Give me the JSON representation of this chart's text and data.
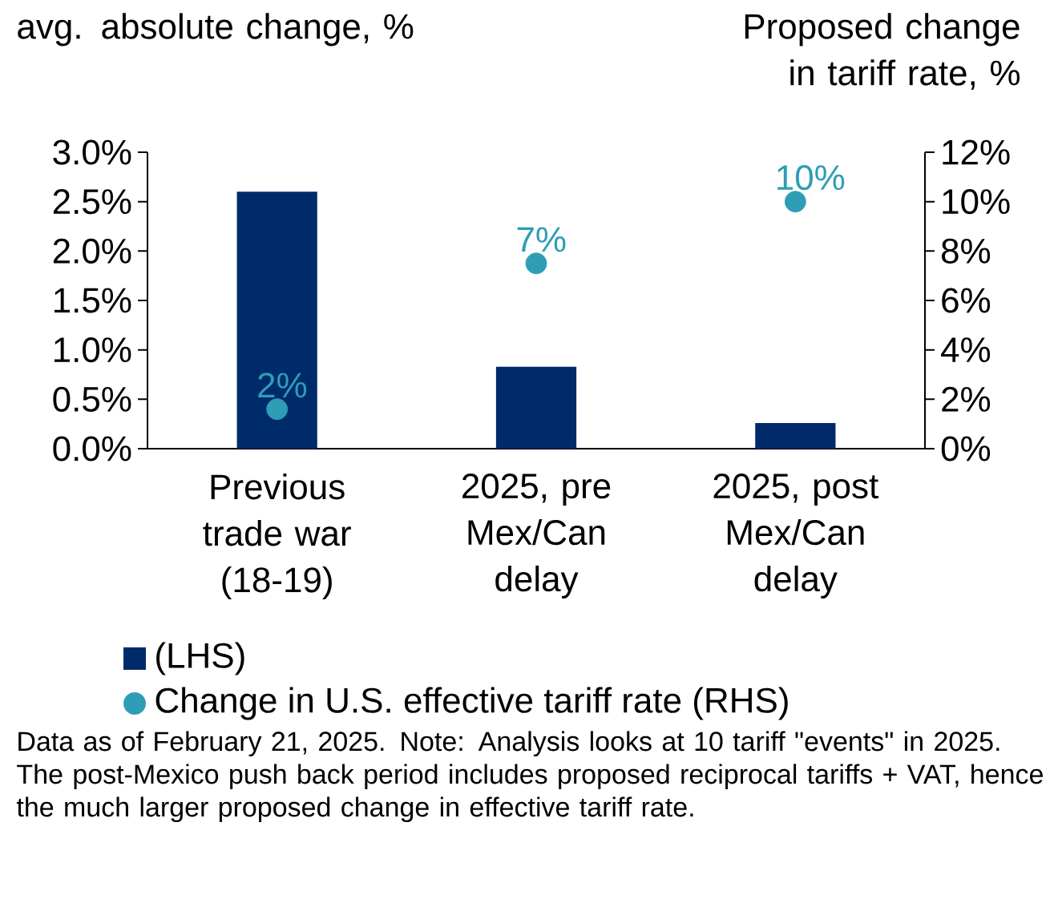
{
  "chart_data": {
    "type": "bar",
    "ylabel": "avg. absolute change, %",
    "y2label": "Proposed change in tariff rate, %",
    "categories": [
      "Previous trade war (18-19)",
      "2025, pre Mex/Can delay",
      "2025, post Mex/Can delay"
    ],
    "series": [
      {
        "name": "(LHS)",
        "color": "#002b6b",
        "values": [
          2.6,
          0.83,
          0.26
        ]
      },
      {
        "name": "Change in U.S. effective tariff rate (RHS)",
        "type": "scatter",
        "axis": "y2",
        "marker": "circle",
        "color": "#2e9db5",
        "values": [
          1.6,
          7.5,
          10
        ],
        "value_labels": [
          "2%",
          "7%",
          "10%"
        ]
      }
    ],
    "ylim": [
      0,
      3
    ],
    "yticks": [
      {
        "value": 0,
        "label": "0.0%"
      },
      {
        "value": 0.5,
        "label": "0.5%"
      },
      {
        "value": 1,
        "label": "1.0%"
      },
      {
        "value": 1.5,
        "label": "1.5%"
      },
      {
        "value": 2,
        "label": "2.0%"
      },
      {
        "value": 2.5,
        "label": "2.5%"
      },
      {
        "value": 3,
        "label": "3.0%"
      }
    ],
    "y2lim": [
      0,
      12
    ],
    "y2ticks": [
      {
        "value": 0,
        "label": "0%"
      },
      {
        "value": 2,
        "label": "2%"
      },
      {
        "value": 4,
        "label": "4%"
      },
      {
        "value": 6,
        "label": "6%"
      },
      {
        "value": 8,
        "label": "8%"
      },
      {
        "value": 10,
        "label": "10%"
      },
      {
        "value": 12,
        "label": "12%"
      }
    ],
    "legend": "bottom",
    "annotations": [
      "Data as of February 21, 2025. Note: Analysis looks at 10 tariff \"events\" in 2025. The post-Mexico push back period includes proposed reciprocal tariffs + VAT, hence the much larger proposed change in effective tariff rate."
    ]
  }
}
